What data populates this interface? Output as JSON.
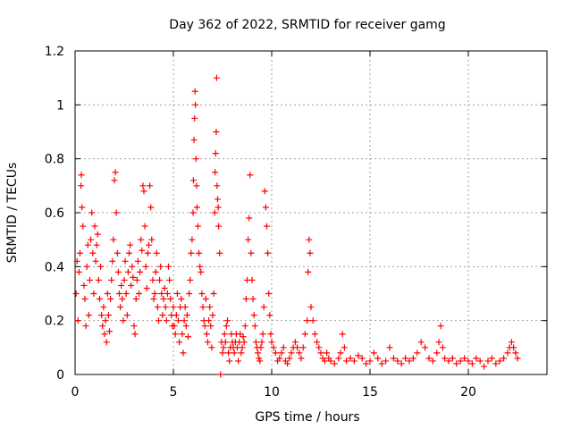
{
  "chart_data": {
    "type": "scatter",
    "title": "Day 362 of 2022, SRMTID for receiver gamg",
    "xlabel": "GPS time / hours",
    "ylabel": "SRMTID / TECUs",
    "xlim": [
      0,
      24
    ],
    "ylim": [
      0,
      1.2
    ],
    "grid": true,
    "marker": "+",
    "xticks": [
      0,
      5,
      10,
      15,
      20
    ],
    "xtick_labels": [
      "0",
      "5",
      "10",
      "15",
      "20"
    ],
    "yticks": [
      0,
      0.2,
      0.4,
      0.6,
      0.8,
      1.0,
      1.2
    ],
    "ytick_labels": [
      "0",
      "0.2",
      "0.4",
      "0.6",
      "0.8",
      "1",
      "1.2"
    ],
    "series": [
      {
        "name": "SRMTID",
        "color": "#ff0000",
        "points": [
          [
            0.05,
            0.3
          ],
          [
            0.1,
            0.42
          ],
          [
            0.15,
            0.2
          ],
          [
            0.2,
            0.38
          ],
          [
            0.25,
            0.45
          ],
          [
            0.3,
            0.7
          ],
          [
            0.32,
            0.74
          ],
          [
            0.35,
            0.62
          ],
          [
            0.4,
            0.55
          ],
          [
            0.45,
            0.33
          ],
          [
            0.5,
            0.28
          ],
          [
            0.55,
            0.18
          ],
          [
            0.6,
            0.4
          ],
          [
            0.65,
            0.48
          ],
          [
            0.7,
            0.22
          ],
          [
            0.75,
            0.35
          ],
          [
            0.8,
            0.5
          ],
          [
            0.85,
            0.6
          ],
          [
            0.9,
            0.45
          ],
          [
            0.95,
            0.3
          ],
          [
            1.0,
            0.55
          ],
          [
            1.05,
            0.42
          ],
          [
            1.1,
            0.48
          ],
          [
            1.15,
            0.52
          ],
          [
            1.2,
            0.35
          ],
          [
            1.25,
            0.28
          ],
          [
            1.3,
            0.4
          ],
          [
            1.35,
            0.22
          ],
          [
            1.4,
            0.18
          ],
          [
            1.45,
            0.25
          ],
          [
            1.5,
            0.15
          ],
          [
            1.55,
            0.2
          ],
          [
            1.6,
            0.12
          ],
          [
            1.65,
            0.3
          ],
          [
            1.7,
            0.22
          ],
          [
            1.75,
            0.16
          ],
          [
            1.8,
            0.28
          ],
          [
            1.85,
            0.35
          ],
          [
            1.9,
            0.42
          ],
          [
            1.95,
            0.5
          ],
          [
            2.0,
            0.72
          ],
          [
            2.05,
            0.75
          ],
          [
            2.1,
            0.6
          ],
          [
            2.15,
            0.45
          ],
          [
            2.2,
            0.38
          ],
          [
            2.25,
            0.3
          ],
          [
            2.3,
            0.25
          ],
          [
            2.35,
            0.33
          ],
          [
            2.4,
            0.28
          ],
          [
            2.45,
            0.2
          ],
          [
            2.5,
            0.35
          ],
          [
            2.55,
            0.42
          ],
          [
            2.6,
            0.3
          ],
          [
            2.65,
            0.22
          ],
          [
            2.7,
            0.38
          ],
          [
            2.75,
            0.45
          ],
          [
            2.8,
            0.48
          ],
          [
            2.85,
            0.33
          ],
          [
            2.9,
            0.4
          ],
          [
            2.95,
            0.36
          ],
          [
            3.0,
            0.18
          ],
          [
            3.05,
            0.15
          ],
          [
            3.1,
            0.28
          ],
          [
            3.15,
            0.35
          ],
          [
            3.2,
            0.42
          ],
          [
            3.25,
            0.3
          ],
          [
            3.3,
            0.38
          ],
          [
            3.35,
            0.5
          ],
          [
            3.4,
            0.46
          ],
          [
            3.45,
            0.7
          ],
          [
            3.5,
            0.68
          ],
          [
            3.55,
            0.55
          ],
          [
            3.6,
            0.4
          ],
          [
            3.65,
            0.32
          ],
          [
            3.7,
            0.45
          ],
          [
            3.75,
            0.48
          ],
          [
            3.8,
            0.7
          ],
          [
            3.85,
            0.62
          ],
          [
            3.9,
            0.5
          ],
          [
            3.95,
            0.35
          ],
          [
            4.0,
            0.28
          ],
          [
            4.05,
            0.3
          ],
          [
            4.1,
            0.38
          ],
          [
            4.15,
            0.45
          ],
          [
            4.2,
            0.25
          ],
          [
            4.25,
            0.2
          ],
          [
            4.3,
            0.35
          ],
          [
            4.35,
            0.4
          ],
          [
            4.4,
            0.3
          ],
          [
            4.45,
            0.22
          ],
          [
            4.5,
            0.28
          ],
          [
            4.55,
            0.32
          ],
          [
            4.6,
            0.25
          ],
          [
            4.65,
            0.2
          ],
          [
            4.7,
            0.3
          ],
          [
            4.75,
            0.4
          ],
          [
            4.8,
            0.35
          ],
          [
            4.85,
            0.28
          ],
          [
            4.9,
            0.22
          ],
          [
            4.95,
            0.18
          ],
          [
            5.0,
            0.25
          ],
          [
            5.05,
            0.18
          ],
          [
            5.1,
            0.15
          ],
          [
            5.15,
            0.22
          ],
          [
            5.2,
            0.3
          ],
          [
            5.25,
            0.2
          ],
          [
            5.3,
            0.12
          ],
          [
            5.35,
            0.25
          ],
          [
            5.4,
            0.28
          ],
          [
            5.45,
            0.15
          ],
          [
            5.5,
            0.08
          ],
          [
            5.55,
            0.2
          ],
          [
            5.6,
            0.25
          ],
          [
            5.65,
            0.18
          ],
          [
            5.7,
            0.22
          ],
          [
            5.75,
            0.14
          ],
          [
            5.8,
            0.3
          ],
          [
            5.85,
            0.35
          ],
          [
            5.9,
            0.45
          ],
          [
            5.95,
            0.5
          ],
          [
            6.0,
            0.6
          ],
          [
            6.02,
            0.72
          ],
          [
            6.05,
            0.87
          ],
          [
            6.08,
            0.95
          ],
          [
            6.1,
            1.05
          ],
          [
            6.12,
            1.0
          ],
          [
            6.15,
            0.8
          ],
          [
            6.18,
            0.7
          ],
          [
            6.2,
            0.62
          ],
          [
            6.25,
            0.55
          ],
          [
            6.3,
            0.45
          ],
          [
            6.35,
            0.4
          ],
          [
            6.4,
            0.38
          ],
          [
            6.45,
            0.3
          ],
          [
            6.5,
            0.25
          ],
          [
            6.55,
            0.2
          ],
          [
            6.6,
            0.18
          ],
          [
            6.65,
            0.28
          ],
          [
            6.7,
            0.15
          ],
          [
            6.75,
            0.12
          ],
          [
            6.8,
            0.2
          ],
          [
            6.85,
            0.25
          ],
          [
            6.9,
            0.18
          ],
          [
            6.95,
            0.1
          ],
          [
            7.0,
            0.22
          ],
          [
            7.05,
            0.3
          ],
          [
            7.1,
            0.6
          ],
          [
            7.12,
            0.75
          ],
          [
            7.15,
            0.82
          ],
          [
            7.18,
            0.9
          ],
          [
            7.2,
            1.1
          ],
          [
            7.22,
            0.7
          ],
          [
            7.25,
            0.65
          ],
          [
            7.28,
            0.62
          ],
          [
            7.3,
            0.55
          ],
          [
            7.35,
            0.45
          ],
          [
            7.4,
            0.0
          ],
          [
            7.45,
            0.12
          ],
          [
            7.5,
            0.08
          ],
          [
            7.55,
            0.1
          ],
          [
            7.6,
            0.15
          ],
          [
            7.65,
            0.12
          ],
          [
            7.7,
            0.18
          ],
          [
            7.75,
            0.2
          ],
          [
            7.8,
            0.08
          ],
          [
            7.85,
            0.05
          ],
          [
            7.9,
            0.1
          ],
          [
            7.95,
            0.15
          ],
          [
            8.0,
            0.12
          ],
          [
            8.05,
            0.1
          ],
          [
            8.1,
            0.08
          ],
          [
            8.15,
            0.12
          ],
          [
            8.2,
            0.15
          ],
          [
            8.25,
            0.1
          ],
          [
            8.3,
            0.05
          ],
          [
            8.35,
            0.12
          ],
          [
            8.4,
            0.15
          ],
          [
            8.45,
            0.08
          ],
          [
            8.5,
            0.1
          ],
          [
            8.55,
            0.14
          ],
          [
            8.6,
            0.12
          ],
          [
            8.65,
            0.18
          ],
          [
            8.7,
            0.28
          ],
          [
            8.75,
            0.35
          ],
          [
            8.8,
            0.5
          ],
          [
            8.85,
            0.58
          ],
          [
            8.9,
            0.74
          ],
          [
            8.95,
            0.45
          ],
          [
            9.0,
            0.35
          ],
          [
            9.05,
            0.28
          ],
          [
            9.1,
            0.22
          ],
          [
            9.15,
            0.18
          ],
          [
            9.2,
            0.12
          ],
          [
            9.25,
            0.1
          ],
          [
            9.3,
            0.08
          ],
          [
            9.35,
            0.06
          ],
          [
            9.4,
            0.05
          ],
          [
            9.45,
            0.1
          ],
          [
            9.5,
            0.12
          ],
          [
            9.55,
            0.15
          ],
          [
            9.6,
            0.25
          ],
          [
            9.65,
            0.68
          ],
          [
            9.7,
            0.62
          ],
          [
            9.75,
            0.55
          ],
          [
            9.8,
            0.45
          ],
          [
            9.85,
            0.3
          ],
          [
            9.9,
            0.22
          ],
          [
            9.95,
            0.15
          ],
          [
            10.0,
            0.12
          ],
          [
            10.1,
            0.1
          ],
          [
            10.2,
            0.08
          ],
          [
            10.3,
            0.05
          ],
          [
            10.4,
            0.06
          ],
          [
            10.5,
            0.08
          ],
          [
            10.6,
            0.1
          ],
          [
            10.7,
            0.05
          ],
          [
            10.8,
            0.04
          ],
          [
            10.9,
            0.06
          ],
          [
            11.0,
            0.08
          ],
          [
            11.1,
            0.1
          ],
          [
            11.2,
            0.12
          ],
          [
            11.3,
            0.1
          ],
          [
            11.4,
            0.08
          ],
          [
            11.5,
            0.06
          ],
          [
            11.6,
            0.1
          ],
          [
            11.7,
            0.15
          ],
          [
            11.8,
            0.2
          ],
          [
            11.85,
            0.38
          ],
          [
            11.9,
            0.5
          ],
          [
            11.95,
            0.45
          ],
          [
            12.0,
            0.25
          ],
          [
            12.1,
            0.2
          ],
          [
            12.2,
            0.15
          ],
          [
            12.3,
            0.12
          ],
          [
            12.4,
            0.1
          ],
          [
            12.5,
            0.08
          ],
          [
            12.6,
            0.06
          ],
          [
            12.7,
            0.05
          ],
          [
            12.8,
            0.08
          ],
          [
            12.9,
            0.06
          ],
          [
            13.0,
            0.05
          ],
          [
            13.2,
            0.04
          ],
          [
            13.4,
            0.06
          ],
          [
            13.5,
            0.08
          ],
          [
            13.6,
            0.15
          ],
          [
            13.7,
            0.1
          ],
          [
            13.8,
            0.05
          ],
          [
            14.0,
            0.06
          ],
          [
            14.2,
            0.05
          ],
          [
            14.4,
            0.07
          ],
          [
            14.6,
            0.06
          ],
          [
            14.8,
            0.04
          ],
          [
            15.0,
            0.05
          ],
          [
            15.2,
            0.08
          ],
          [
            15.4,
            0.06
          ],
          [
            15.6,
            0.04
          ],
          [
            15.8,
            0.05
          ],
          [
            16.0,
            0.1
          ],
          [
            16.2,
            0.06
          ],
          [
            16.4,
            0.05
          ],
          [
            16.6,
            0.04
          ],
          [
            16.8,
            0.06
          ],
          [
            17.0,
            0.05
          ],
          [
            17.2,
            0.06
          ],
          [
            17.4,
            0.08
          ],
          [
            17.6,
            0.12
          ],
          [
            17.8,
            0.1
          ],
          [
            18.0,
            0.06
          ],
          [
            18.2,
            0.05
          ],
          [
            18.4,
            0.08
          ],
          [
            18.5,
            0.12
          ],
          [
            18.6,
            0.18
          ],
          [
            18.7,
            0.1
          ],
          [
            18.8,
            0.06
          ],
          [
            19.0,
            0.05
          ],
          [
            19.2,
            0.06
          ],
          [
            19.4,
            0.04
          ],
          [
            19.6,
            0.05
          ],
          [
            19.8,
            0.06
          ],
          [
            20.0,
            0.05
          ],
          [
            20.2,
            0.04
          ],
          [
            20.4,
            0.06
          ],
          [
            20.6,
            0.05
          ],
          [
            20.8,
            0.03
          ],
          [
            21.0,
            0.05
          ],
          [
            21.2,
            0.06
          ],
          [
            21.4,
            0.04
          ],
          [
            21.6,
            0.05
          ],
          [
            21.8,
            0.06
          ],
          [
            22.0,
            0.08
          ],
          [
            22.1,
            0.1
          ],
          [
            22.2,
            0.12
          ],
          [
            22.3,
            0.1
          ],
          [
            22.4,
            0.08
          ],
          [
            22.5,
            0.06
          ]
        ]
      }
    ]
  }
}
